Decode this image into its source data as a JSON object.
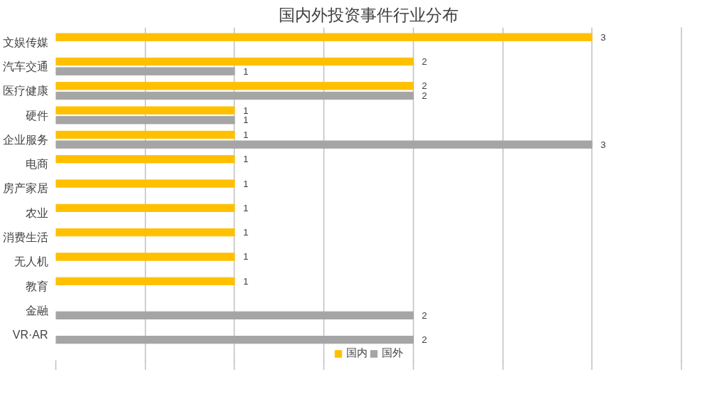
{
  "chart_data": {
    "type": "bar",
    "orientation": "horizontal",
    "title": "国内外投资事件行业分布",
    "categories": [
      "文娱传媒",
      "汽车交通",
      "医疗健康",
      "硬件",
      "企业服务",
      "电商",
      "房产家居",
      "农业",
      "消费生活",
      "无人机",
      "教育",
      "金融",
      "VR·AR"
    ],
    "series": [
      {
        "name": "国内",
        "color": "#ffc000",
        "values": [
          3,
          2,
          2,
          1,
          1,
          1,
          1,
          1,
          1,
          1,
          1,
          null,
          null
        ]
      },
      {
        "name": "国外",
        "color": "#a5a5a5",
        "values": [
          null,
          1,
          2,
          1,
          3,
          null,
          null,
          null,
          null,
          null,
          null,
          2,
          2
        ]
      }
    ],
    "xlim": [
      0,
      3.5
    ],
    "xticks": [
      {
        "value": 0,
        "label": null
      },
      {
        "value": 0.5,
        "label": null
      },
      {
        "value": 1,
        "label": null
      },
      {
        "value": 1.5,
        "label": null
      },
      {
        "value": 2,
        "label": null
      },
      {
        "value": 2.5,
        "label": null
      },
      {
        "value": 3,
        "label": null
      },
      {
        "value": 3.5,
        "label": null
      }
    ],
    "grid": "x",
    "legend": "bottom",
    "data_labels": true
  }
}
